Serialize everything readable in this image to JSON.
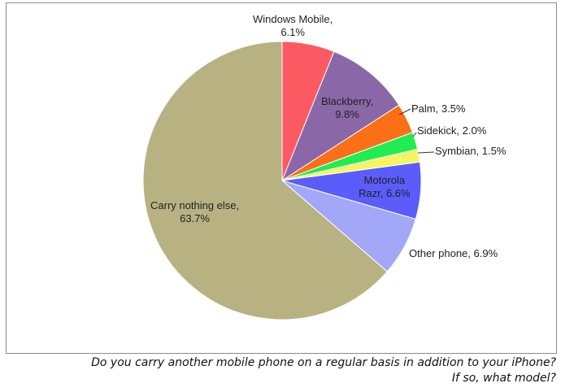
{
  "chart_data": {
    "type": "pie",
    "slices": [
      {
        "label_lines": [
          "Windows Mobile,",
          "6.1%"
        ],
        "value": 6.1,
        "color": "#fc5a62"
      },
      {
        "label_lines": [
          "Blackberry,",
          "9.8%"
        ],
        "value": 9.8,
        "color": "#8a68a8"
      },
      {
        "label_lines": [
          "Palm, 3.5%"
        ],
        "value": 3.5,
        "color": "#fb6f17"
      },
      {
        "label_lines": [
          "Sidekick, 2.0%"
        ],
        "value": 2.0,
        "color": "#1fed52"
      },
      {
        "label_lines": [
          "Symbian, 1.5%"
        ],
        "value": 1.5,
        "color": "#f5f561"
      },
      {
        "label_lines": [
          "Motorola",
          "Razr, 6.6%"
        ],
        "value": 6.6,
        "color": "#5a5cfb"
      },
      {
        "label_lines": [
          "Other phone, 6.9%"
        ],
        "value": 6.9,
        "color": "#a2a8f7"
      },
      {
        "label_lines": [
          "Carry nothing else,",
          "63.7%"
        ],
        "value": 63.7,
        "color": "#b8b283"
      }
    ]
  },
  "caption": {
    "line1": "Do you carry another mobile phone on a regular basis in addition to your iPhone?",
    "line2": "If so, what model?"
  }
}
